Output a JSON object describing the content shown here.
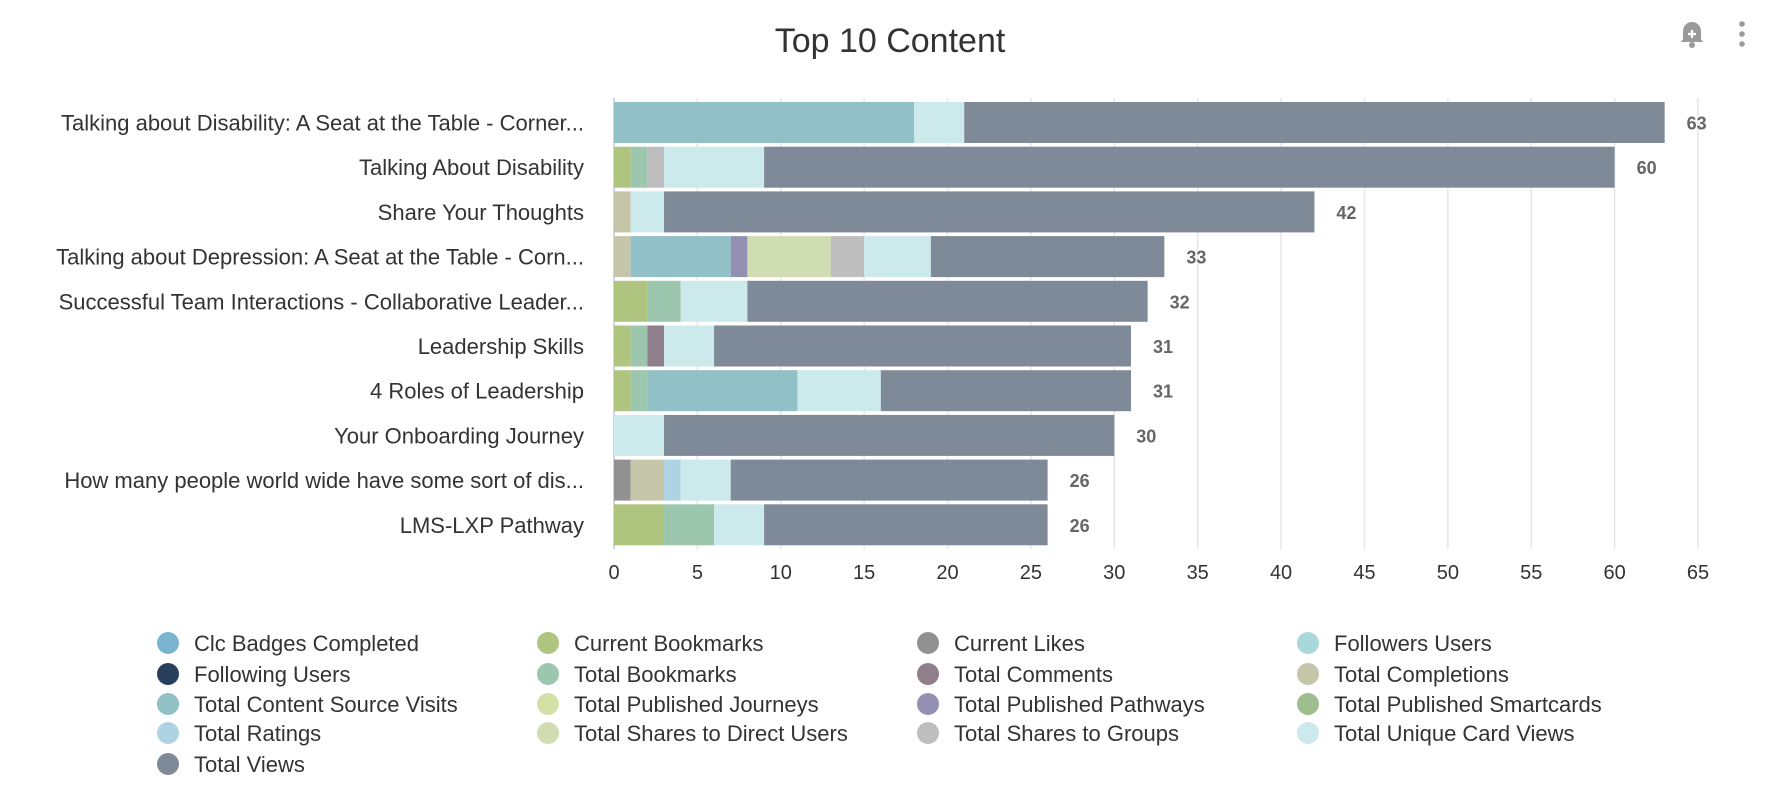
{
  "chart_data": {
    "type": "bar",
    "orientation": "horizontal",
    "stacked": true,
    "title": "Top 10 Content",
    "xlim": [
      0,
      65
    ],
    "xticks": [
      0,
      5,
      10,
      15,
      20,
      25,
      30,
      35,
      40,
      45,
      50,
      55,
      60,
      65
    ],
    "grid": true,
    "legend_position": "bottom",
    "categories": [
      "Talking about Disability: A Seat at the Table - Corner...",
      "Talking About Disability",
      "Share Your Thoughts",
      "Talking about Depression: A Seat at the Table - Corn...",
      "Successful Team Interactions - Collaborative Leader...",
      "Leadership Skills",
      "4 Roles of Leadership",
      "Your Onboarding Journey",
      "How many people world wide have some sort of dis...",
      "LMS-LXP Pathway"
    ],
    "totals": [
      63,
      60,
      42,
      33,
      32,
      31,
      31,
      30,
      26,
      26
    ],
    "series": [
      {
        "name": "Clc Badges Completed",
        "color": "#7ab5cf",
        "values": [
          0,
          0,
          0,
          0,
          0,
          0,
          0,
          0,
          0,
          0
        ]
      },
      {
        "name": "Current Bookmarks",
        "color": "#afc47e",
        "values": [
          0,
          1,
          0,
          0,
          2,
          1,
          1,
          0,
          0,
          3
        ]
      },
      {
        "name": "Current Likes",
        "color": "#919191",
        "values": [
          0,
          0,
          0,
          0,
          0,
          0,
          0,
          0,
          1,
          0
        ]
      },
      {
        "name": "Followers Users",
        "color": "#a8d8dc",
        "values": [
          0,
          0,
          0,
          0,
          0,
          0,
          0,
          0,
          0,
          0
        ]
      },
      {
        "name": "Following Users",
        "color": "#283e5a",
        "values": [
          0,
          0,
          0,
          0,
          0,
          0,
          0,
          0,
          0,
          0
        ]
      },
      {
        "name": "Total Bookmarks",
        "color": "#9cc6ae",
        "values": [
          0,
          1,
          0,
          0,
          2,
          1,
          1,
          0,
          0,
          3
        ]
      },
      {
        "name": "Total Comments",
        "color": "#8f7f8a",
        "values": [
          0,
          0,
          0,
          0,
          0,
          1,
          0,
          0,
          0,
          0
        ]
      },
      {
        "name": "Total Completions",
        "color": "#c5c5a9",
        "values": [
          0,
          0,
          1,
          1,
          0,
          0,
          0,
          0,
          2,
          0
        ]
      },
      {
        "name": "Total Content Source Visits",
        "color": "#91c0c7",
        "values": [
          18,
          0,
          0,
          6,
          0,
          0,
          9,
          0,
          0,
          0
        ]
      },
      {
        "name": "Total Published Journeys",
        "color": "#d3e0a6",
        "values": [
          0,
          0,
          0,
          0,
          0,
          0,
          0,
          0,
          0,
          0
        ]
      },
      {
        "name": "Total Published Pathways",
        "color": "#9390b3",
        "values": [
          0,
          0,
          0,
          1,
          0,
          0,
          0,
          0,
          0,
          0
        ]
      },
      {
        "name": "Total Published Smartcards",
        "color": "#a0bd8e",
        "values": [
          0,
          0,
          0,
          0,
          0,
          0,
          0,
          0,
          0,
          0
        ]
      },
      {
        "name": "Total Ratings",
        "color": "#aed4e3",
        "values": [
          0,
          0,
          0,
          0,
          0,
          0,
          0,
          0,
          1,
          0
        ]
      },
      {
        "name": "Total Shares to Direct Users",
        "color": "#d0dcb1",
        "values": [
          0,
          0,
          0,
          5,
          0,
          0,
          0,
          0,
          0,
          0
        ]
      },
      {
        "name": "Total Shares to Groups",
        "color": "#bebebe",
        "values": [
          0,
          1,
          0,
          2,
          0,
          0,
          0,
          0,
          0,
          0
        ]
      },
      {
        "name": "Total Unique Card Views",
        "color": "#cce9eb",
        "values": [
          3,
          6,
          2,
          4,
          4,
          3,
          5,
          3,
          3,
          3
        ]
      },
      {
        "name": "Total Views",
        "color": "#7f8a99",
        "values": [
          42,
          51,
          39,
          14,
          24,
          25,
          15,
          27,
          19,
          17
        ]
      }
    ]
  },
  "toolbar": {
    "icons": [
      "bell-plus-icon",
      "more-vertical-icon"
    ]
  }
}
